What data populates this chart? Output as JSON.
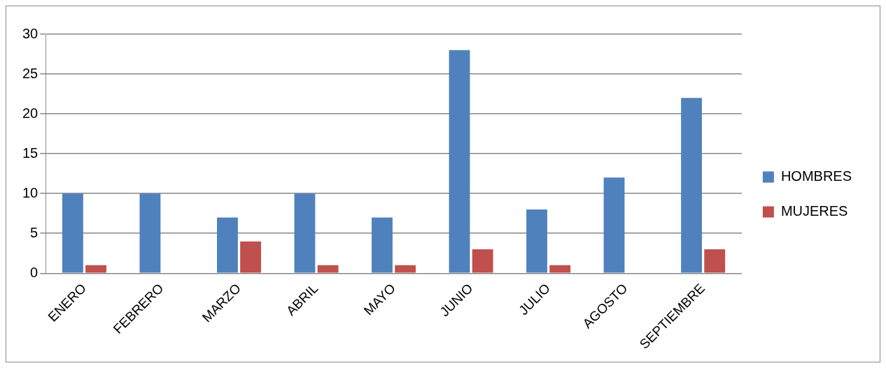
{
  "chart_data": {
    "type": "bar",
    "categories": [
      "ENERO",
      "FEBRERO",
      "MARZO",
      "ABRIL",
      "MAYO",
      "JUNIO",
      "JULIO",
      "AGOSTO",
      "SEPTIEMBRE"
    ],
    "series": [
      {
        "name": "HOMBRES",
        "color": "#4f81bd",
        "values": [
          10,
          10,
          7,
          10,
          7,
          28,
          8,
          12,
          22
        ]
      },
      {
        "name": "MUJERES",
        "color": "#c0504d",
        "values": [
          1,
          0,
          4,
          1,
          1,
          3,
          1,
          0,
          3
        ]
      }
    ],
    "ylim": [
      0,
      30
    ],
    "yticks": [
      0,
      5,
      10,
      15,
      20,
      25,
      30
    ],
    "grid": "y",
    "legend": "right"
  }
}
